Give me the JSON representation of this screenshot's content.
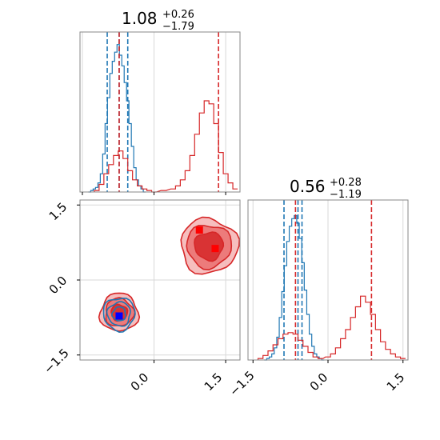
{
  "chart_data": [
    {
      "type": "histogram",
      "panel": "marginal-x",
      "title": {
        "value": "1.08",
        "plus": "+0.26",
        "minus": "−1.79"
      },
      "xlim": [
        -1.55,
        1.8
      ],
      "ticks": [
        -1.5,
        0.0,
        1.5
      ],
      "grid": true,
      "series": [
        {
          "color": "#1f77b4",
          "quantiles": [
            -0.98,
            -0.73,
            -0.55
          ],
          "bins_x": [
            -1.35,
            -1.3,
            -1.25,
            -1.2,
            -1.15,
            -1.1,
            -1.05,
            -1.0,
            -0.95,
            -0.9,
            -0.85,
            -0.8,
            -0.75,
            -0.7,
            -0.65,
            -0.6,
            -0.55,
            -0.5,
            -0.45,
            -0.4,
            -0.35,
            -0.3,
            -0.25,
            -0.2
          ],
          "counts": [
            0,
            0.01,
            0.02,
            0.03,
            0.06,
            0.12,
            0.25,
            0.45,
            0.62,
            0.78,
            0.86,
            0.92,
            0.97,
            0.9,
            0.83,
            0.72,
            0.6,
            0.45,
            0.3,
            0.16,
            0.08,
            0.04,
            0.02,
            0
          ]
        },
        {
          "color": "#d62728",
          "quantiles": [
            -0.73,
            1.35
          ],
          "bins_x": [
            -1.2,
            -1.1,
            -1.0,
            -0.9,
            -0.8,
            -0.7,
            -0.6,
            -0.5,
            -0.4,
            -0.3,
            -0.2,
            -0.1,
            0.0,
            0.2,
            0.4,
            0.5,
            0.6,
            0.7,
            0.8,
            0.9,
            1.0,
            1.1,
            1.2,
            1.3,
            1.4,
            1.5,
            1.6,
            1.7
          ],
          "counts": [
            0.01,
            0.05,
            0.12,
            0.18,
            0.24,
            0.27,
            0.22,
            0.14,
            0.08,
            0.04,
            0.02,
            0.01,
            0,
            0.01,
            0.02,
            0.04,
            0.08,
            0.14,
            0.24,
            0.38,
            0.52,
            0.6,
            0.58,
            0.45,
            0.26,
            0.12,
            0.06,
            0.02
          ]
        }
      ]
    },
    {
      "type": "histogram",
      "panel": "marginal-y",
      "title": {
        "value": "0.56",
        "plus": "+0.28",
        "minus": "−1.19"
      },
      "xlim": [
        -1.6,
        1.6
      ],
      "ticks": [
        -1.5,
        0.0,
        1.5
      ],
      "grid": true,
      "series": [
        {
          "color": "#1f77b4",
          "quantiles": [
            -0.88,
            -0.6,
            -0.52
          ],
          "bins_x": [
            -1.25,
            -1.2,
            -1.15,
            -1.1,
            -1.05,
            -1.0,
            -0.95,
            -0.9,
            -0.85,
            -0.8,
            -0.75,
            -0.7,
            -0.65,
            -0.6,
            -0.55,
            -0.5,
            -0.45,
            -0.4,
            -0.35,
            -0.3,
            -0.25,
            -0.2,
            -0.15,
            -0.1
          ],
          "counts": [
            0,
            0.01,
            0.02,
            0.04,
            0.08,
            0.15,
            0.28,
            0.45,
            0.62,
            0.78,
            0.88,
            0.93,
            0.95,
            0.9,
            0.8,
            0.64,
            0.46,
            0.3,
            0.17,
            0.09,
            0.04,
            0.02,
            0.01,
            0
          ]
        },
        {
          "color": "#d62728",
          "quantiles": [
            -0.65,
            0.87
          ],
          "bins_x": [
            -1.35,
            -1.25,
            -1.15,
            -1.05,
            -0.95,
            -0.85,
            -0.75,
            -0.65,
            -0.55,
            -0.45,
            -0.35,
            -0.25,
            -0.15,
            0.0,
            0.1,
            0.2,
            0.3,
            0.4,
            0.5,
            0.6,
            0.7,
            0.8,
            0.9,
            1.0,
            1.1,
            1.2,
            1.3,
            1.4,
            1.5
          ],
          "counts": [
            0.01,
            0.03,
            0.06,
            0.1,
            0.14,
            0.17,
            0.18,
            0.17,
            0.13,
            0.09,
            0.05,
            0.02,
            0.01,
            0.02,
            0.04,
            0.08,
            0.14,
            0.2,
            0.28,
            0.35,
            0.42,
            0.38,
            0.3,
            0.2,
            0.12,
            0.07,
            0.04,
            0.02,
            0.01
          ]
        }
      ]
    },
    {
      "type": "contour",
      "panel": "joint",
      "xlim": [
        -1.55,
        1.8
      ],
      "ylim": [
        -1.6,
        1.6
      ],
      "xticks": [
        0.0,
        1.5
      ],
      "yticks": [
        -1.5,
        0.0,
        1.5
      ],
      "grid": true,
      "blobs": [
        {
          "color": "#d62728",
          "center": [
            -0.73,
            -0.65
          ],
          "levels": [
            [
              0.4,
              0.38
            ],
            [
              0.3,
              0.28
            ],
            [
              0.17,
              0.16
            ]
          ]
        },
        {
          "color": "#d62728",
          "center": [
            1.15,
            0.68
          ],
          "levels": [
            [
              0.6,
              0.55
            ],
            [
              0.47,
              0.43
            ],
            [
              0.3,
              0.28
            ]
          ]
        },
        {
          "color": "#1f77b4",
          "center": [
            -0.73,
            -0.68
          ],
          "levels": [
            [
              0.33,
              0.33
            ],
            [
              0.24,
              0.24
            ],
            [
              0.14,
              0.14
            ]
          ]
        }
      ],
      "markers": [
        {
          "color": "#ff0000",
          "x": 0.95,
          "y": 1.0
        },
        {
          "color": "#ff0000",
          "x": 1.28,
          "y": 0.63
        },
        {
          "color": "#0000ff",
          "x": -0.73,
          "y": -0.72
        }
      ]
    }
  ],
  "tick_labels": {
    "x_bottom_left": [
      "0.0",
      "1.5"
    ],
    "y_left": [
      "1.5",
      "0.0",
      "−1.5"
    ],
    "x_bottom_right": [
      "−1.5",
      "0.0",
      "1.5"
    ]
  }
}
